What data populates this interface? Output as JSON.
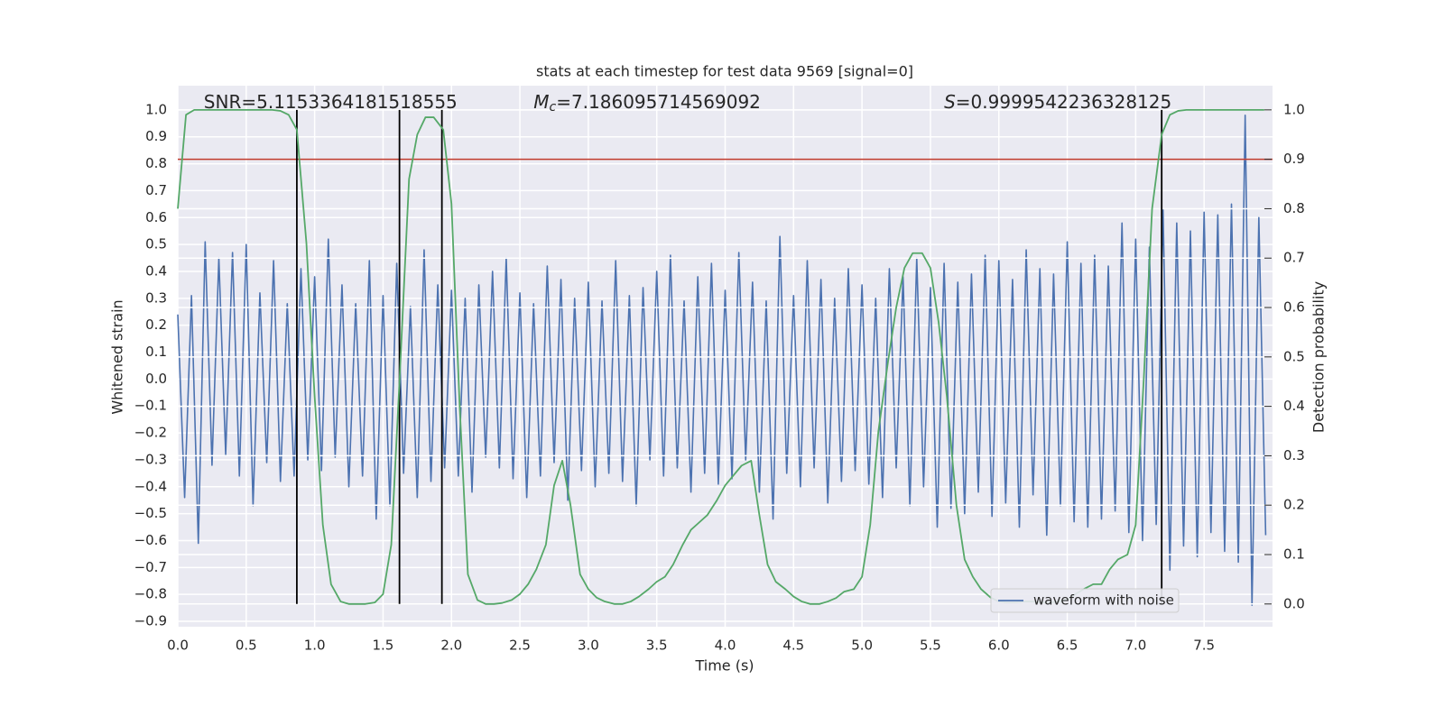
{
  "chart_data": {
    "type": "line",
    "title": "stats at each timestep for test data 9569 [signal=0]",
    "xlabel": "Time (s)",
    "ylabel": "Whitened strain",
    "y2label": "Detection probability",
    "xlim": [
      0,
      8
    ],
    "ylim": [
      -0.92,
      1.09
    ],
    "y2lim": [
      -0.046,
      1.049
    ],
    "grid": true,
    "legend_loc": "lower right",
    "xticks": [
      {
        "value": 0,
        "label": "0.0"
      },
      0.5,
      {
        "value": 1,
        "label": "1.0"
      },
      1.5,
      {
        "value": 2,
        "label": "2.0"
      },
      2.5,
      {
        "value": 3,
        "label": "3.0"
      },
      3.5,
      {
        "value": 4,
        "label": "4.0"
      },
      4.5,
      {
        "value": 5,
        "label": "5.0"
      },
      5.5,
      {
        "value": 6,
        "label": "6.0"
      },
      6.5,
      {
        "value": 7,
        "label": "7.0"
      },
      7.5
    ],
    "yticks": [
      {
        "value": 1,
        "label": "1.0"
      },
      0.9,
      0.8,
      0.7,
      0.6,
      0.5,
      0.4,
      0.3,
      0.2,
      0.1,
      {
        "value": 0,
        "label": "0.0"
      },
      {
        "value": -0.1,
        "label": "−0.1"
      },
      {
        "value": -0.2,
        "label": "−0.2"
      },
      {
        "value": -0.3,
        "label": "−0.3"
      },
      {
        "value": -0.4,
        "label": "−0.4"
      },
      {
        "value": -0.5,
        "label": "−0.5"
      },
      {
        "value": -0.6,
        "label": "−0.6"
      },
      {
        "value": -0.7,
        "label": "−0.7"
      },
      {
        "value": -0.8,
        "label": "−0.8"
      },
      {
        "value": -0.9,
        "label": "−0.9"
      }
    ],
    "y2ticks": [
      {
        "value": 0,
        "label": "0.0"
      },
      0.1,
      0.2,
      0.3,
      0.4,
      0.5,
      0.6,
      0.7,
      0.8,
      0.9,
      {
        "value": 1,
        "label": "1.0"
      }
    ],
    "annotations": [
      {
        "text": "SNR=5.1153364181518555",
        "x": 0.19
      },
      {
        "text": "M",
        "sub": "c",
        "rest": "=7.186095714569092",
        "x": 2.6
      },
      {
        "text": "S",
        "rest": "=0.9999542236328125",
        "x": 5.6
      }
    ],
    "hline": {
      "y": 0.9,
      "axis": "y2",
      "color": "#c0392b"
    },
    "vlines": {
      "x": [
        0.87,
        1.62,
        1.93,
        7.19
      ],
      "ymin": 0,
      "ymax": 1,
      "axis": "y2",
      "color": "#000000"
    },
    "series": [
      {
        "name": "waveform with noise",
        "color": "#4c72b0",
        "x": [
          0,
          0.05,
          0.1,
          0.15,
          0.2,
          0.25,
          0.3,
          0.35,
          0.4,
          0.45,
          0.5,
          0.55,
          0.6,
          0.65,
          0.7,
          0.75,
          0.8,
          0.85,
          0.9,
          0.95,
          1,
          1.05,
          1.1,
          1.15,
          1.2,
          1.25,
          1.3,
          1.35,
          1.4,
          1.45,
          1.5,
          1.55,
          1.6,
          1.65,
          1.7,
          1.75,
          1.8,
          1.85,
          1.9,
          1.95,
          2,
          2.05,
          2.1,
          2.15,
          2.2,
          2.25,
          2.3,
          2.35,
          2.4,
          2.45,
          2.5,
          2.55,
          2.6,
          2.65,
          2.7,
          2.75,
          2.8,
          2.85,
          2.9,
          2.95,
          3,
          3.05,
          3.1,
          3.15,
          3.2,
          3.25,
          3.3,
          3.35,
          3.4,
          3.45,
          3.5,
          3.55,
          3.6,
          3.65,
          3.7,
          3.75,
          3.8,
          3.85,
          3.9,
          3.95,
          4,
          4.05,
          4.1,
          4.15,
          4.2,
          4.25,
          4.3,
          4.35,
          4.4,
          4.45,
          4.5,
          4.55,
          4.6,
          4.65,
          4.7,
          4.75,
          4.8,
          4.85,
          4.9,
          4.95,
          5,
          5.05,
          5.1,
          5.15,
          5.2,
          5.25,
          5.3,
          5.35,
          5.4,
          5.45,
          5.5,
          5.55,
          5.6,
          5.65,
          5.7,
          5.75,
          5.8,
          5.85,
          5.9,
          5.95,
          6,
          6.05,
          6.1,
          6.15,
          6.2,
          6.25,
          6.3,
          6.35,
          6.4,
          6.45,
          6.5,
          6.55,
          6.6,
          6.65,
          6.7,
          6.75,
          6.8,
          6.85,
          6.9,
          6.95,
          7,
          7.05,
          7.1,
          7.15,
          7.2,
          7.25,
          7.3,
          7.35,
          7.4,
          7.45,
          7.5,
          7.55,
          7.6,
          7.65,
          7.7,
          7.75,
          7.8,
          7.85,
          7.9,
          7.95
        ],
        "values": [
          0.24,
          -0.44,
          0.31,
          -0.61,
          0.51,
          -0.32,
          0.45,
          -0.28,
          0.47,
          -0.36,
          0.5,
          -0.47,
          0.32,
          -0.31,
          0.44,
          -0.38,
          0.28,
          -0.36,
          0.41,
          -0.3,
          0.38,
          -0.34,
          0.52,
          -0.29,
          0.35,
          -0.4,
          0.28,
          -0.36,
          0.44,
          -0.52,
          0.31,
          -0.47,
          0.43,
          -0.35,
          0.27,
          -0.44,
          0.48,
          -0.38,
          0.35,
          -0.33,
          0.33,
          -0.36,
          0.3,
          -0.42,
          0.35,
          -0.29,
          0.4,
          -0.33,
          0.45,
          -0.37,
          0.32,
          -0.44,
          0.28,
          -0.36,
          0.42,
          -0.31,
          0.37,
          -0.45,
          0.3,
          -0.34,
          0.36,
          -0.4,
          0.29,
          -0.35,
          0.44,
          -0.38,
          0.31,
          -0.47,
          0.34,
          -0.3,
          0.4,
          -0.36,
          0.46,
          -0.33,
          0.29,
          -0.42,
          0.38,
          -0.35,
          0.43,
          -0.39,
          0.33,
          -0.37,
          0.47,
          -0.3,
          0.36,
          -0.42,
          0.29,
          -0.52,
          0.53,
          -0.35,
          0.31,
          -0.4,
          0.44,
          -0.33,
          0.37,
          -0.46,
          0.3,
          -0.38,
          0.41,
          -0.34,
          0.35,
          -0.39,
          0.3,
          -0.44,
          0.41,
          -0.33,
          0.38,
          -0.47,
          0.45,
          -0.4,
          0.34,
          -0.55,
          0.43,
          -0.48,
          0.36,
          -0.5,
          0.39,
          -0.42,
          0.46,
          -0.51,
          0.44,
          -0.46,
          0.37,
          -0.55,
          0.48,
          -0.43,
          0.41,
          -0.58,
          0.39,
          -0.47,
          0.51,
          -0.53,
          0.43,
          -0.55,
          0.46,
          -0.52,
          0.42,
          -0.49,
          0.58,
          -0.57,
          0.52,
          -0.6,
          0.49,
          -0.54,
          0.63,
          -0.71,
          0.58,
          -0.62,
          0.55,
          -0.66,
          0.62,
          -0.57,
          0.61,
          -0.64,
          0.65,
          -0.68,
          0.98,
          -0.84,
          0.6,
          -0.58
        ]
      },
      {
        "color": "#55a868",
        "axis": "y2",
        "x": [
          0,
          0.06,
          0.12,
          0.19,
          0.25,
          0.31,
          0.37,
          0.44,
          0.5,
          0.56,
          0.62,
          0.69,
          0.75,
          0.81,
          0.87,
          0.94,
          1,
          1.06,
          1.12,
          1.19,
          1.25,
          1.31,
          1.37,
          1.44,
          1.5,
          1.56,
          1.62,
          1.69,
          1.75,
          1.81,
          1.87,
          1.94,
          2,
          2.06,
          2.12,
          2.19,
          2.25,
          2.31,
          2.37,
          2.44,
          2.5,
          2.56,
          2.62,
          2.69,
          2.75,
          2.81,
          2.87,
          2.94,
          3,
          3.06,
          3.12,
          3.19,
          3.25,
          3.31,
          3.37,
          3.44,
          3.5,
          3.56,
          3.62,
          3.69,
          3.75,
          3.81,
          3.87,
          3.94,
          4,
          4.06,
          4.12,
          4.19,
          4.25,
          4.31,
          4.37,
          4.44,
          4.5,
          4.56,
          4.62,
          4.69,
          4.75,
          4.81,
          4.87,
          4.94,
          5,
          5.06,
          5.12,
          5.19,
          5.25,
          5.31,
          5.37,
          5.44,
          5.5,
          5.56,
          5.62,
          5.69,
          5.75,
          5.81,
          5.87,
          5.94,
          6,
          6.06,
          6.12,
          6.19,
          6.25,
          6.31,
          6.37,
          6.44,
          6.5,
          6.56,
          6.62,
          6.69,
          6.75,
          6.81,
          6.87,
          6.94,
          7,
          7.06,
          7.12,
          7.19,
          7.25,
          7.31,
          7.37,
          7.44,
          7.5,
          7.56,
          7.62,
          7.69,
          7.75,
          7.81,
          7.87,
          7.94
        ],
        "values": [
          0.8,
          0.99,
          1,
          1,
          1,
          1,
          1,
          1,
          1,
          1,
          1,
          1,
          0.998,
          0.99,
          0.96,
          0.73,
          0.42,
          0.16,
          0.04,
          0.005,
          0,
          0,
          0,
          0.003,
          0.02,
          0.12,
          0.45,
          0.86,
          0.95,
          0.985,
          0.985,
          0.96,
          0.81,
          0.4,
          0.06,
          0.008,
          0,
          0,
          0.002,
          0.008,
          0.02,
          0.04,
          0.07,
          0.12,
          0.24,
          0.29,
          0.2,
          0.06,
          0.03,
          0.013,
          0.005,
          0,
          0,
          0.005,
          0.015,
          0.03,
          0.045,
          0.055,
          0.08,
          0.12,
          0.15,
          0.165,
          0.18,
          0.21,
          0.24,
          0.26,
          0.28,
          0.29,
          0.18,
          0.08,
          0.045,
          0.03,
          0.015,
          0.005,
          0,
          0,
          0.005,
          0.012,
          0.025,
          0.03,
          0.055,
          0.16,
          0.35,
          0.49,
          0.6,
          0.68,
          0.71,
          0.71,
          0.68,
          0.57,
          0.42,
          0.2,
          0.09,
          0.055,
          0.03,
          0.013,
          0.005,
          0.003,
          0.003,
          0.005,
          0.005,
          0.003,
          0.003,
          0.005,
          0.009,
          0.02,
          0.03,
          0.04,
          0.04,
          0.07,
          0.09,
          0.1,
          0.16,
          0.46,
          0.8,
          0.95,
          0.99,
          0.998,
          1,
          1,
          1,
          1,
          1,
          1,
          1,
          1,
          1,
          1
        ]
      }
    ]
  }
}
